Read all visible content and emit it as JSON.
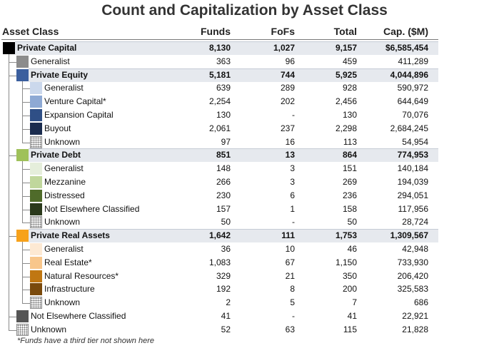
{
  "title": "Count and Capitalization by Asset Class",
  "columns": [
    "Asset Class",
    "Funds",
    "FoFs",
    "Total",
    "Cap. ($M)"
  ],
  "rows": [
    {
      "label": "Private Capital",
      "funds": "8,130",
      "fofs": "1,027",
      "total": "9,157",
      "cap": "$6,585,454",
      "level": 0,
      "bold": true,
      "highlight": true,
      "swatch": "#000000"
    },
    {
      "label": "Generalist",
      "funds": "363",
      "fofs": "96",
      "total": "459",
      "cap": "411,289",
      "level": 1,
      "bold": false,
      "highlight": false,
      "swatch": "#8c8c8c"
    },
    {
      "label": "Private Equity",
      "funds": "5,181",
      "fofs": "744",
      "total": "5,925",
      "cap": "4,044,896",
      "level": 1,
      "bold": true,
      "highlight": true,
      "swatch": "#3b5f9e"
    },
    {
      "label": "Generalist",
      "funds": "639",
      "fofs": "289",
      "total": "928",
      "cap": "590,972",
      "level": 2,
      "bold": false,
      "highlight": false,
      "swatch": "#cbd8ec"
    },
    {
      "label": "Venture Capital*",
      "funds": "2,254",
      "fofs": "202",
      "total": "2,456",
      "cap": "644,649",
      "level": 2,
      "bold": false,
      "highlight": false,
      "swatch": "#8ea9d4"
    },
    {
      "label": "Expansion Capital",
      "funds": "130",
      "fofs": "-",
      "total": "130",
      "cap": "70,076",
      "level": 2,
      "bold": false,
      "highlight": false,
      "swatch": "#2f4f86"
    },
    {
      "label": "Buyout",
      "funds": "2,061",
      "fofs": "237",
      "total": "2,298",
      "cap": "2,684,245",
      "level": 2,
      "bold": false,
      "highlight": false,
      "swatch": "#1b2c4e"
    },
    {
      "label": "Unknown",
      "funds": "97",
      "fofs": "16",
      "total": "113",
      "cap": "54,954",
      "level": 2,
      "bold": false,
      "highlight": false,
      "swatch": "hatch"
    },
    {
      "label": "Private Debt",
      "funds": "851",
      "fofs": "13",
      "total": "864",
      "cap": "774,953",
      "level": 1,
      "bold": true,
      "highlight": true,
      "swatch": "#9fc15a"
    },
    {
      "label": "Generalist",
      "funds": "148",
      "fofs": "3",
      "total": "151",
      "cap": "140,184",
      "level": 2,
      "bold": false,
      "highlight": false,
      "swatch": "#e5eedb"
    },
    {
      "label": "Mezzanine",
      "funds": "266",
      "fofs": "3",
      "total": "269",
      "cap": "194,039",
      "level": 2,
      "bold": false,
      "highlight": false,
      "swatch": "#c0d79c"
    },
    {
      "label": "Distressed",
      "funds": "230",
      "fofs": "6",
      "total": "236",
      "cap": "294,051",
      "level": 2,
      "bold": false,
      "highlight": false,
      "swatch": "#4f6b2a"
    },
    {
      "label": "Not Elsewhere Classified",
      "funds": "157",
      "fofs": "1",
      "total": "158",
      "cap": "117,956",
      "level": 2,
      "bold": false,
      "highlight": false,
      "swatch": "#2b3a1c"
    },
    {
      "label": "Unknown",
      "funds": "50",
      "fofs": "-",
      "total": "50",
      "cap": "28,724",
      "level": 2,
      "bold": false,
      "highlight": false,
      "swatch": "hatch"
    },
    {
      "label": "Private Real Assets",
      "funds": "1,642",
      "fofs": "111",
      "total": "1,753",
      "cap": "1,309,567",
      "level": 1,
      "bold": true,
      "highlight": true,
      "swatch": "#f7a21b"
    },
    {
      "label": "Generalist",
      "funds": "36",
      "fofs": "10",
      "total": "46",
      "cap": "42,948",
      "level": 2,
      "bold": false,
      "highlight": false,
      "swatch": "#fde9d3"
    },
    {
      "label": "Real Estate*",
      "funds": "1,083",
      "fofs": "67",
      "total": "1,150",
      "cap": "733,930",
      "level": 2,
      "bold": false,
      "highlight": false,
      "swatch": "#f8c68b"
    },
    {
      "label": "Natural Resources*",
      "funds": "329",
      "fofs": "21",
      "total": "350",
      "cap": "206,420",
      "level": 2,
      "bold": false,
      "highlight": false,
      "swatch": "#c07712"
    },
    {
      "label": "Infrastructure",
      "funds": "192",
      "fofs": "8",
      "total": "200",
      "cap": "325,583",
      "level": 2,
      "bold": false,
      "highlight": false,
      "swatch": "#7a4a0c"
    },
    {
      "label": "Unknown",
      "funds": "2",
      "fofs": "5",
      "total": "7",
      "cap": "686",
      "level": 2,
      "bold": false,
      "highlight": false,
      "swatch": "hatch"
    },
    {
      "label": "Not Elsewhere Classified",
      "funds": "41",
      "fofs": "-",
      "total": "41",
      "cap": "22,921",
      "level": 1,
      "bold": false,
      "highlight": false,
      "swatch": "#555555"
    },
    {
      "label": "Unknown",
      "funds": "52",
      "fofs": "63",
      "total": "115",
      "cap": "21,828",
      "level": 1,
      "bold": false,
      "highlight": false,
      "swatch": "hatch"
    }
  ],
  "footnote": "*Funds have a third tier not shown here"
}
